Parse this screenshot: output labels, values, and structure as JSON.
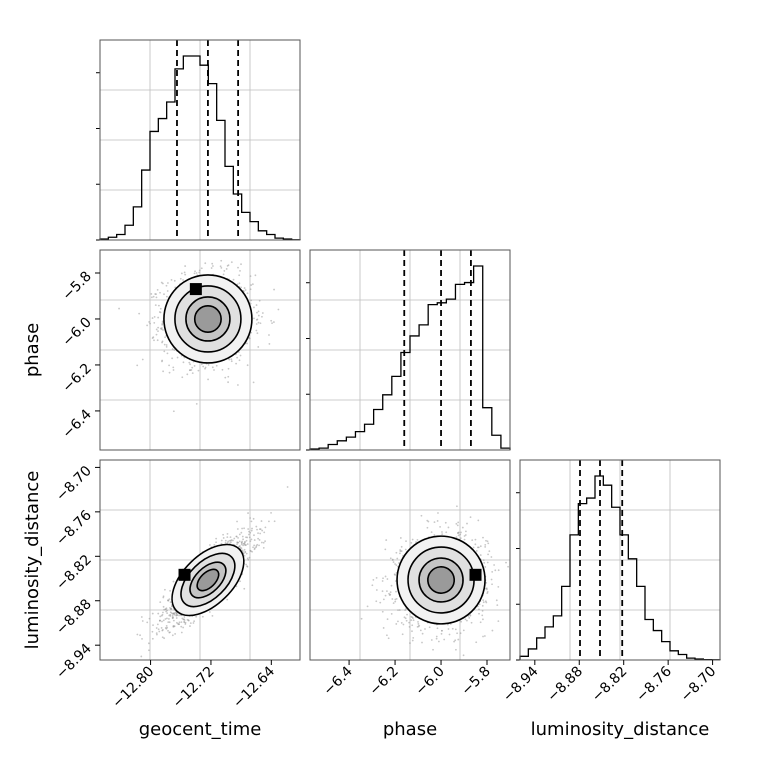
{
  "chart_data": {
    "type": "corner",
    "parameters": [
      "geocent_time",
      "phase",
      "luminosity_distance"
    ],
    "axis_labels": {
      "geocent_time": "geocent_time",
      "phase": "phase",
      "luminosity_distance": "luminosity_distance"
    },
    "ranges": {
      "geocent_time": [
        -12.867,
        -12.602
      ],
      "phase": [
        -6.57,
        -5.7
      ],
      "luminosity_distance": [
        -8.96,
        -8.69
      ]
    },
    "ticks": {
      "geocent_time": {
        "values": [
          -12.8,
          -12.72,
          -12.64
        ],
        "labels": [
          "−12.80",
          "−12.72",
          "−12.64"
        ]
      },
      "phase": {
        "values": [
          -6.4,
          -6.2,
          -6.0,
          -5.8
        ],
        "labels": [
          "−6.4",
          "−6.2",
          "−6.0",
          "−5.8"
        ]
      },
      "luminosity_distance": {
        "values": [
          -8.94,
          -8.88,
          -8.82,
          -8.76,
          -8.7
        ],
        "labels": [
          "−8.94",
          "−8.88",
          "−8.82",
          "−8.76",
          "−8.70"
        ]
      }
    },
    "quantiles": {
      "geocent_time": [
        -12.765,
        -12.724,
        -12.684
      ],
      "phase": [
        -6.16,
        -6.0,
        -5.87
      ],
      "luminosity_distance": [
        -8.879,
        -8.852,
        -8.822
      ]
    },
    "histograms": {
      "geocent_time": {
        "edges_range": [
          -12.867,
          -12.602
        ],
        "counts": [
          0.5,
          1.5,
          3,
          8,
          18,
          38,
          59,
          66,
          75,
          93,
          100,
          100,
          95,
          85,
          65,
          40,
          25,
          15,
          10,
          5,
          3,
          1,
          0.5,
          0.1
        ]
      },
      "phase": {
        "edges_range": [
          -6.57,
          -5.7
        ],
        "counts": [
          0.5,
          1,
          3,
          5,
          7,
          10,
          14,
          22,
          30,
          40,
          53,
          62,
          68,
          79,
          80,
          82,
          90,
          91,
          100,
          23,
          8,
          1
        ]
      },
      "luminosity_distance": {
        "edges_range": [
          -8.96,
          -8.69
        ],
        "counts": [
          2,
          6,
          12,
          18,
          24,
          40,
          68,
          85,
          88,
          100,
          95,
          83,
          68,
          55,
          40,
          22,
          16,
          10,
          5,
          3,
          1,
          0.5,
          0.2,
          0.1
        ]
      }
    },
    "correlations": [
      {
        "x": "geocent_time",
        "y": "phase",
        "rho": 0.0,
        "mode": [
          -12.74,
          -5.87
        ]
      },
      {
        "x": "geocent_time",
        "y": "luminosity_distance",
        "rho": 0.85,
        "mode": [
          -12.755,
          -8.845
        ]
      },
      {
        "x": "phase",
        "y": "luminosity_distance",
        "rho": 0.08,
        "mode": [
          -5.85,
          -8.845
        ]
      }
    ],
    "grid": true,
    "legend": "none"
  }
}
